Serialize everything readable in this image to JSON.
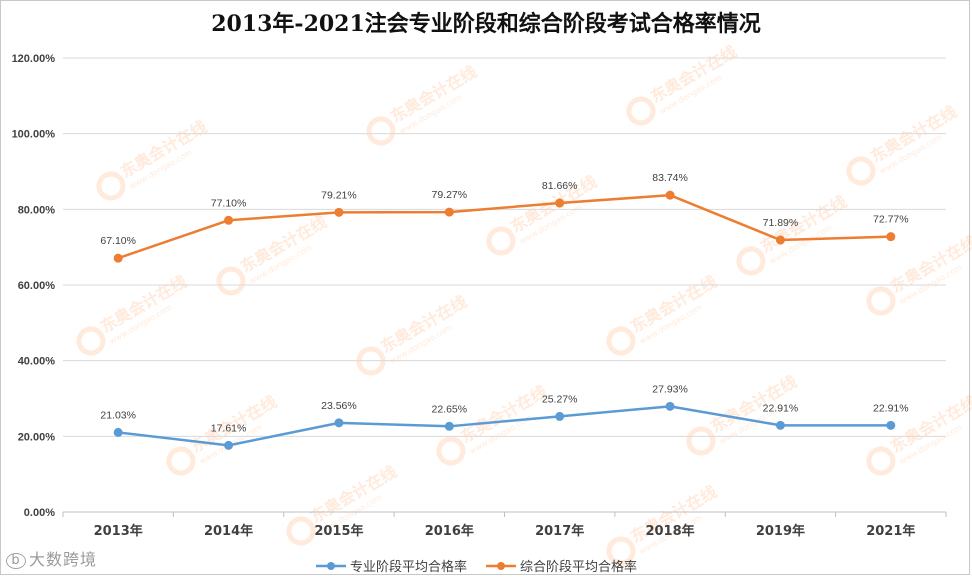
{
  "chart_data": {
    "type": "line",
    "title": "2013年-2021注会专业阶段和综合阶段考试合格率情况",
    "categories": [
      "2013年",
      "2014年",
      "2015年",
      "2016年",
      "2017年",
      "2018年",
      "2019年",
      "2021年"
    ],
    "xlabel": "",
    "ylabel": "",
    "ylim": [
      0,
      120
    ],
    "yticks": [
      "0.00%",
      "20.00%",
      "40.00%",
      "60.00%",
      "80.00%",
      "100.00%",
      "120.00%"
    ],
    "grid": true,
    "legend_position": "bottom",
    "series": [
      {
        "name": "专业阶段平均合格率",
        "color": "#5b9bd5",
        "values": [
          21.03,
          17.61,
          23.56,
          22.65,
          25.27,
          27.93,
          22.91,
          22.91
        ],
        "labels": [
          "21.03%",
          "17.61%",
          "23.56%",
          "22.65%",
          "25.27%",
          "27.93%",
          "22.91%",
          "22.91%"
        ]
      },
      {
        "name": "综合阶段平均合格率",
        "color": "#ed7d31",
        "values": [
          67.1,
          77.1,
          79.21,
          79.27,
          81.66,
          83.74,
          71.89,
          72.77
        ],
        "labels": [
          "67.10%",
          "77.10%",
          "79.21%",
          "79.27%",
          "81.66%",
          "83.74%",
          "71.89%",
          "72.77%"
        ]
      }
    ]
  },
  "watermarks": {
    "brand_text": "东奥会计在线",
    "brand_url": "www.dongao.com",
    "corner_text": "大数跨境"
  }
}
